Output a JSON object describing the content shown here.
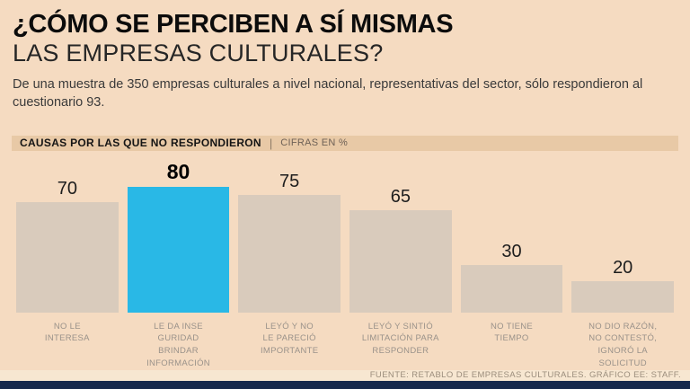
{
  "header": {
    "title_line1": "¿CÓMO SE PERCIBEN A SÍ MISMAS",
    "title_line2": "LAS EMPRESAS CULTURALES?",
    "subtitle": "De una muestra de 350 empresas culturales a nivel nacional, representativas del sector, sólo respondieron al cuestionario 93."
  },
  "section": {
    "label": "CAUSAS POR LAS QUE NO RESPONDIERON",
    "units": "CIFRAS EN %"
  },
  "chart_data": {
    "type": "bar",
    "title": "CAUSAS POR LAS QUE NO RESPONDIERON",
    "units": "CIFRAS EN %",
    "categories": [
      "NO LE INTERESA",
      "LE DA INSEGURIDAD BRINDAR INFORMACIÓN",
      "LEYÓ Y NO LE PARECIÓ IMPORTANTE",
      "LEYÓ Y SINTIÓ LIMITACIÓN PARA RESPONDER",
      "NO TIENE TIEMPO",
      "NO DIO RAZÓN, NO CONTESTÓ, IGNORÓ LA SOLICITUD"
    ],
    "category_lines": [
      [
        "NO LE",
        "INTERESA"
      ],
      [
        "LE DA INSE",
        "GURIDAD",
        "BRINDAR",
        "INFORMACIÓN"
      ],
      [
        "LEYÓ Y NO",
        "LE PARECIÓ",
        "IMPORTANTE"
      ],
      [
        "LEYÓ Y SINTIÓ",
        "LIMITACIÓN PARA",
        "RESPONDER"
      ],
      [
        "NO TIENE",
        "TIEMPO"
      ],
      [
        "NO DIO RAZÓN,",
        "NO CONTESTÓ,",
        "IGNORÓ LA",
        "SOLICITUD"
      ]
    ],
    "values": [
      70,
      80,
      75,
      65,
      30,
      20
    ],
    "highlight_index": 1,
    "ylim": [
      0,
      80
    ],
    "bar_color": "#d9cbbc",
    "highlight_color": "#29b8e6",
    "legend": "none",
    "grid": false
  },
  "footer": {
    "source": "FUENTE: RETABLO DE EMPRESAS CULTURALES.  GRÁFICO EE: STAFF."
  },
  "colors": {
    "background": "#f5dbc1",
    "section_bar": "#e8c9a6",
    "bar": "#d9cbbc",
    "highlight": "#29b8e6",
    "bottom_stripe": "#17294c"
  }
}
